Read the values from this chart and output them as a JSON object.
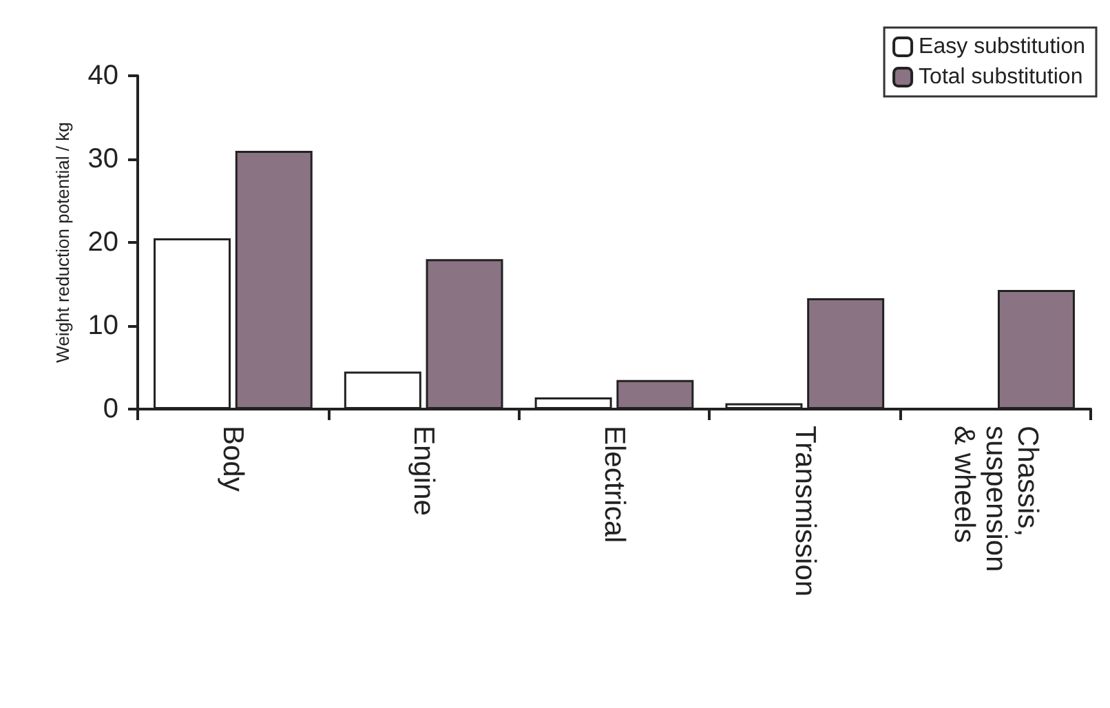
{
  "chart_data": {
    "type": "bar",
    "ylabel": "Weight reduction potential / kg",
    "categories": [
      "Body",
      "Engine",
      "Electrical",
      "Transmission",
      "Chassis,\nsuspension\n& wheels"
    ],
    "series": [
      {
        "name": "Easy substitution",
        "color": "#ffffff",
        "values": [
          20.5,
          4.5,
          1.4,
          0.7,
          0
        ]
      },
      {
        "name": "Total substitution",
        "color": "#8a7382",
        "values": [
          31,
          18,
          3.5,
          13.3,
          14.3
        ]
      }
    ],
    "ylim": [
      0,
      40
    ],
    "yticks": [
      0,
      10,
      20,
      30,
      40
    ],
    "grid": false,
    "legend": "top right"
  }
}
